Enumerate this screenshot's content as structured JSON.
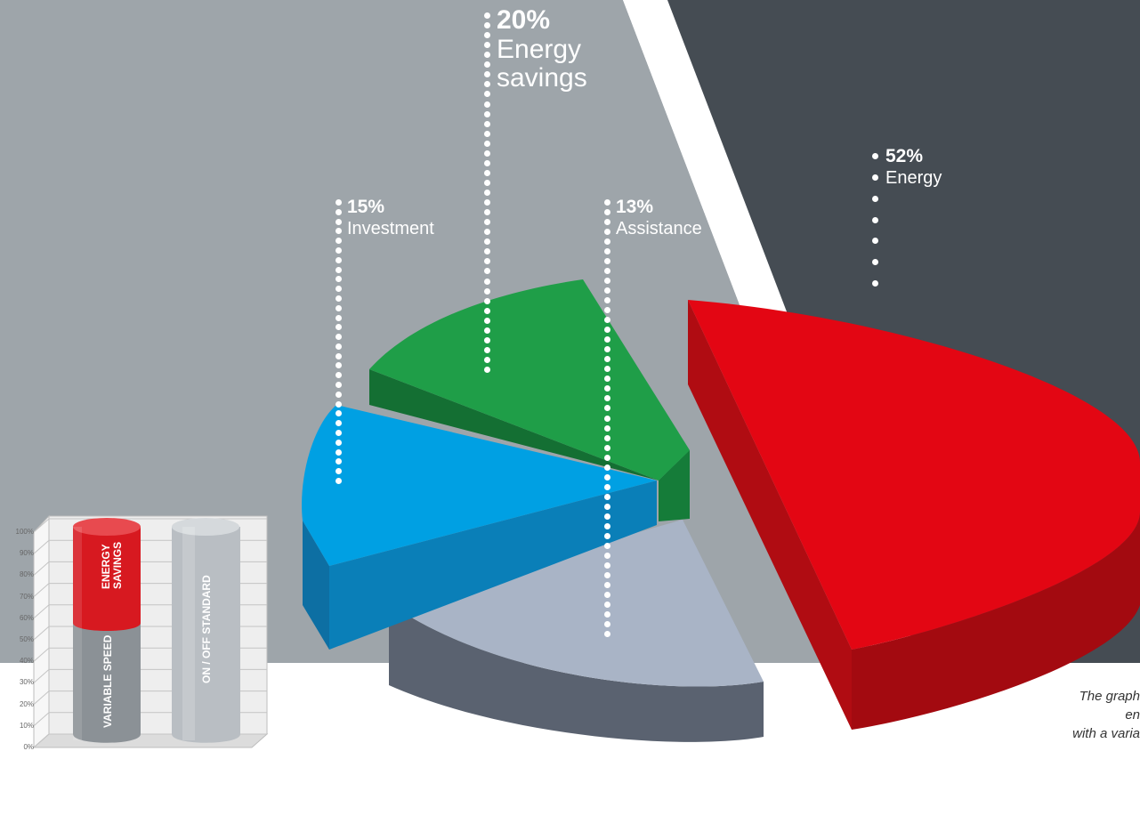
{
  "chart_data": [
    {
      "type": "pie",
      "slices": [
        {
          "name": "Energy",
          "value": 52,
          "label": "52%",
          "color": "#e30613"
        },
        {
          "name": "Energy savings",
          "value": 20,
          "label": "20%",
          "color": "#1f9e48"
        },
        {
          "name": "Investment",
          "value": 15,
          "label": "15%",
          "color": "#00a0e3"
        },
        {
          "name": "Assistance",
          "value": 13,
          "label": "13%",
          "color": "#a9b4c6"
        }
      ]
    },
    {
      "type": "bar",
      "categories": [
        "VARIABLE SPEED",
        "ON / OFF STANDARD"
      ],
      "series": [
        {
          "name": "",
          "values": [
            70,
            100
          ],
          "color": "#9aa0a6"
        },
        {
          "name": "ENERGY SAVINGS",
          "values": [
            30,
            0
          ],
          "color": "#d71920"
        }
      ],
      "yticks": [
        "0%",
        "10%",
        "20%",
        "30%",
        "40%",
        "50%",
        "60%",
        "70%",
        "80%",
        "90%",
        "100%"
      ],
      "ylim": [
        0,
        100
      ]
    }
  ],
  "labels": {
    "energy": {
      "pct": "52%",
      "name": "Energy"
    },
    "savings": {
      "pct": "20%",
      "name1": "Energy",
      "name2": "savings"
    },
    "investment": {
      "pct": "15%",
      "name": "Investment"
    },
    "assistance": {
      "pct": "13%",
      "name": "Assistance"
    }
  },
  "bar_labels": {
    "savings1": "ENERGY",
    "savings2": "SAVINGS",
    "variable": "VARIABLE SPEED",
    "onoff": "ON / OFF STANDARD"
  },
  "caption": {
    "line1": "The graph",
    "line2": "en",
    "line3": "with a varia"
  },
  "colors": {
    "bg_light": "#9ea5aa",
    "bg_dark": "#454c53"
  }
}
